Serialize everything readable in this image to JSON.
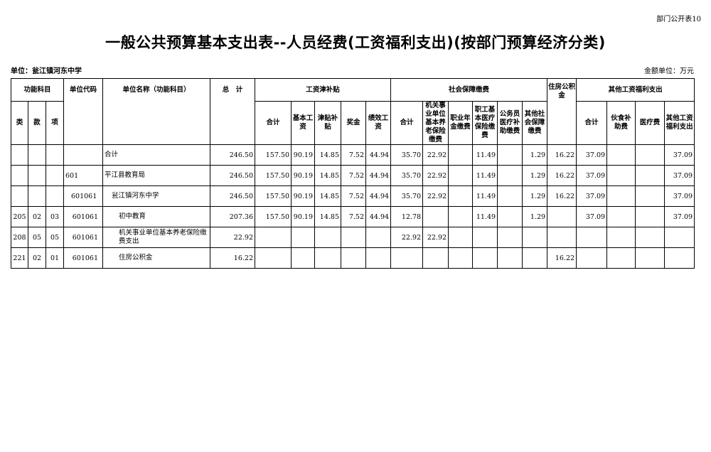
{
  "form_number": "部门公开表10",
  "title": "一般公共预算基本支出表--人员经费(工资福利支出)(按部门预算经济分类)",
  "unit_label": "单位：瓮江镇河东中学",
  "amount_unit": "金额单位：万元",
  "headers": {
    "func_subject": "功能科目",
    "lei": "类",
    "kuan": "款",
    "xiang": "项",
    "unit_code": "单位代码",
    "unit_name": "单位名称（功能科目）",
    "total": "总　计",
    "wage_group": "工资津补贴",
    "wage_cols": [
      "合计",
      "基本工资",
      "津贴补贴",
      "奖金",
      "绩效工资"
    ],
    "social_group": "社会保障缴费",
    "social_cols": [
      "合计",
      "机关事业单位基本养老保险缴费",
      "职业年金缴费",
      "职工基本医疗保险缴费",
      "公务员医疗补助缴费",
      "其他社会保障缴费"
    ],
    "housing": "住房公积金",
    "other_group": "其他工资福利支出",
    "other_cols": [
      "合计",
      "伙食补助费",
      "医疗费",
      "其他工资福利支出"
    ]
  },
  "rows": [
    {
      "lei": "",
      "kuan": "",
      "xiang": "",
      "code": "",
      "name": "合计",
      "level": 0,
      "values": [
        "246.50",
        "157.50",
        "90.19",
        "14.85",
        "7.52",
        "44.94",
        "35.70",
        "22.92",
        "",
        "11.49",
        "",
        "1.29",
        "16.22",
        "37.09",
        "",
        "",
        "37.09"
      ]
    },
    {
      "lei": "",
      "kuan": "",
      "xiang": "",
      "code": "601",
      "name": "平江县教育局",
      "level": 0,
      "values": [
        "246.50",
        "157.50",
        "90.19",
        "14.85",
        "7.52",
        "44.94",
        "35.70",
        "22.92",
        "",
        "11.49",
        "",
        "1.29",
        "16.22",
        "37.09",
        "",
        "",
        "37.09"
      ]
    },
    {
      "lei": "",
      "kuan": "",
      "xiang": "",
      "code": "601061",
      "name": "瓮江镇河东中学",
      "level": 1,
      "values": [
        "246.50",
        "157.50",
        "90.19",
        "14.85",
        "7.52",
        "44.94",
        "35.70",
        "22.92",
        "",
        "11.49",
        "",
        "1.29",
        "16.22",
        "37.09",
        "",
        "",
        "37.09"
      ]
    },
    {
      "lei": "205",
      "kuan": "02",
      "xiang": "03",
      "code": "601061",
      "name": "初中教育",
      "level": 2,
      "values": [
        "207.36",
        "157.50",
        "90.19",
        "14.85",
        "7.52",
        "44.94",
        "12.78",
        "",
        "",
        "11.49",
        "",
        "1.29",
        "",
        "37.09",
        "",
        "",
        "37.09"
      ]
    },
    {
      "lei": "208",
      "kuan": "05",
      "xiang": "05",
      "code": "601061",
      "name": "机关事业单位基本养老保险缴费支出",
      "level": 2,
      "values": [
        "22.92",
        "",
        "",
        "",
        "",
        "",
        "22.92",
        "22.92",
        "",
        "",
        "",
        "",
        "",
        "",
        "",
        "",
        ""
      ]
    },
    {
      "lei": "221",
      "kuan": "02",
      "xiang": "01",
      "code": "601061",
      "name": "住房公积金",
      "level": 2,
      "values": [
        "16.22",
        "",
        "",
        "",
        "",
        "",
        "",
        "",
        "",
        "",
        "",
        "",
        "16.22",
        "",
        "",
        "",
        ""
      ]
    }
  ]
}
